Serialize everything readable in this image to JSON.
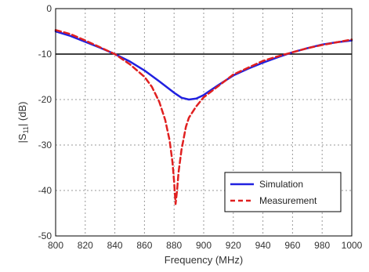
{
  "chart_data": {
    "type": "line",
    "title": "",
    "xlabel": "Frequency (MHz)",
    "ylabel_main": "|S",
    "ylabel_sub": "11",
    "ylabel_tail": "| (dB)",
    "xlim": [
      800,
      1000
    ],
    "ylim": [
      -50,
      0
    ],
    "xticks": [
      800,
      820,
      840,
      860,
      880,
      900,
      920,
      940,
      960,
      980,
      1000
    ],
    "yticks": [
      0,
      -10,
      -20,
      -30,
      -40,
      -50
    ],
    "grid": true,
    "legend_position": "bottom-right",
    "reference_line": {
      "y": -10,
      "color": "#000000"
    },
    "series": [
      {
        "name": "Simulation",
        "color": "#2020e0",
        "style": "solid",
        "x": [
          800,
          810,
          820,
          830,
          840,
          850,
          860,
          870,
          880,
          885,
          890,
          895,
          900,
          910,
          920,
          930,
          940,
          950,
          960,
          970,
          980,
          990,
          1000
        ],
        "y": [
          -5,
          -6,
          -7.3,
          -8.6,
          -10,
          -11.6,
          -13.6,
          -16,
          -18.5,
          -19.6,
          -20,
          -19.8,
          -19,
          -16.8,
          -14.7,
          -13.2,
          -11.9,
          -10.7,
          -9.6,
          -8.7,
          -7.9,
          -7.4,
          -7
        ]
      },
      {
        "name": "Measurement",
        "color": "#e02020",
        "style": "dashed",
        "x": [
          800,
          810,
          820,
          830,
          840,
          850,
          860,
          865,
          870,
          874,
          877,
          879,
          880,
          881,
          882,
          883,
          885,
          888,
          890,
          895,
          900,
          910,
          920,
          930,
          940,
          950,
          960,
          970,
          980,
          990,
          1000
        ],
        "y": [
          -4.7,
          -5.6,
          -7,
          -8.5,
          -10,
          -12.2,
          -15,
          -17.2,
          -20.5,
          -24.5,
          -29,
          -34,
          -38,
          -43,
          -40,
          -36,
          -31,
          -26,
          -24,
          -21.5,
          -19.5,
          -17,
          -14.5,
          -13,
          -11.5,
          -10.5,
          -9.6,
          -8.7,
          -8,
          -7.4,
          -6.8
        ]
      }
    ]
  }
}
